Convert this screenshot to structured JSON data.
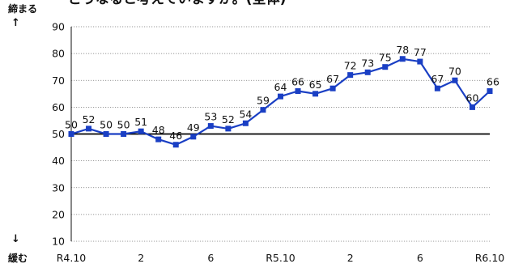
{
  "header": {
    "title_fragment": "どうなると考えていますか。(全体)",
    "top_label": "締まる",
    "top_arrow": "↑",
    "bottom_arrow": "↓",
    "bottom_label": "緩む"
  },
  "chart_data": {
    "type": "line",
    "x_tick_labels": [
      "R4.10",
      "2",
      "6",
      "R5.10",
      "2",
      "6",
      "R6.10"
    ],
    "y_ticks": [
      10,
      20,
      30,
      40,
      50,
      60,
      70,
      80,
      90
    ],
    "ylim": [
      10,
      90
    ],
    "reference_line": 50,
    "grid": "dotted horizontal",
    "series": [
      {
        "color": "#1a3fc4",
        "values": [
          50,
          52,
          50,
          50,
          51,
          48,
          46,
          49,
          53,
          52,
          54,
          59,
          64,
          66,
          65,
          67,
          72,
          73,
          75,
          78,
          77,
          67,
          70,
          60,
          66
        ]
      }
    ]
  }
}
